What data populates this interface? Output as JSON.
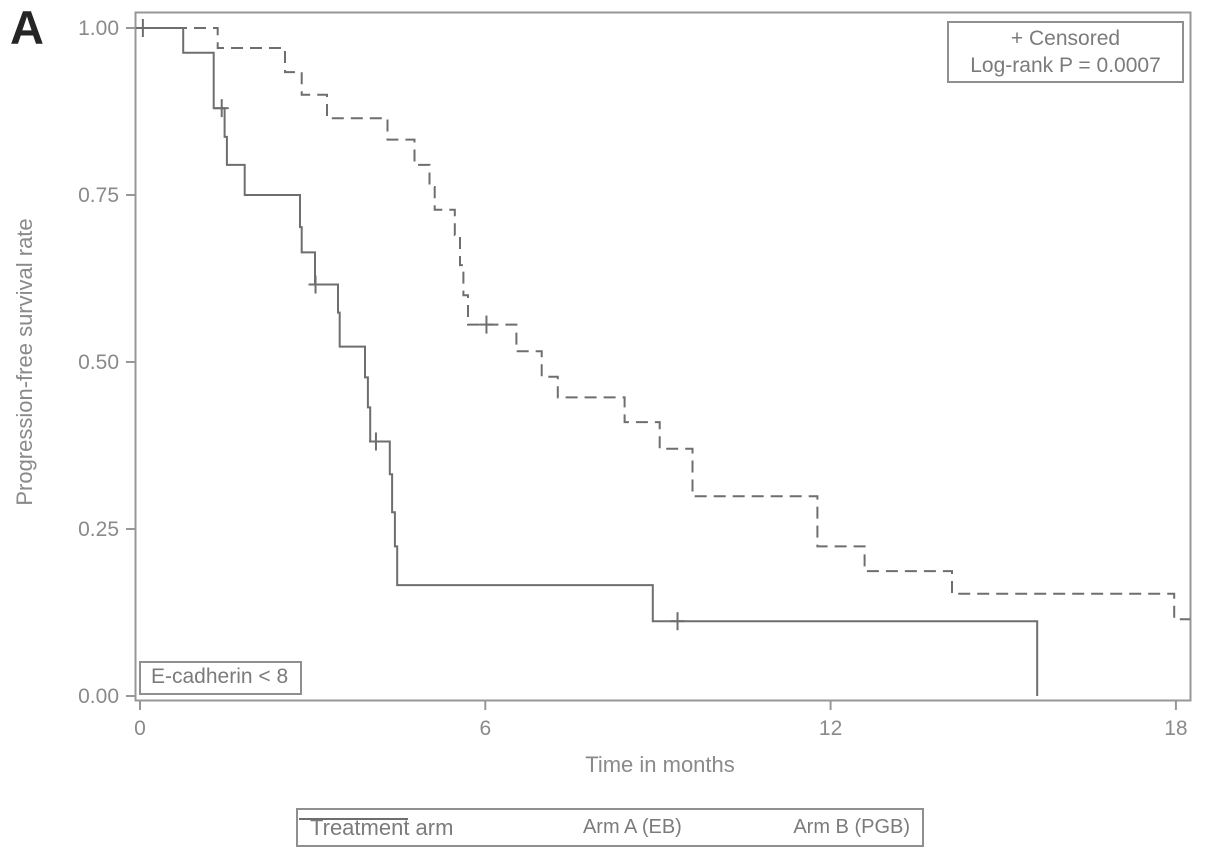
{
  "chart_data": {
    "type": "line",
    "subtype": "kaplan-meier-step-curves",
    "panel_label": "A",
    "xlabel": "Time in months",
    "ylabel": "Progression-free survival rate",
    "xlim": [
      0,
      18.25
    ],
    "ylim": [
      0,
      1
    ],
    "xticks": [
      "0",
      "6",
      "12",
      "18"
    ],
    "yticks": [
      "0.00",
      "0.25",
      "0.50",
      "0.75",
      "1.00"
    ],
    "grid": "off",
    "annotations": {
      "stats_box": [
        "+ Censored",
        "Log-rank P = 0.0007"
      ],
      "subgroup_box": "E-cadherin < 8"
    },
    "legend": {
      "position": "bottom",
      "title": "Treatment arm",
      "entries": [
        {
          "label": "Arm A (EB)",
          "line_style": "solid"
        },
        {
          "label": "Arm B (PGB)",
          "line_style": "dashed"
        }
      ]
    },
    "colors": {
      "line": "#6e6e6e",
      "frame": "#979797",
      "tick_text": "#8a8a8a",
      "box_text": "#7b7b7b",
      "panel_label": "#252525",
      "background": "#ffffff"
    },
    "series": [
      {
        "name": "Arm A (EB)",
        "style": "solid",
        "steps": [
          [
            0,
            1.0
          ],
          [
            0.75,
            0.963
          ],
          [
            1.28,
            0.88
          ],
          [
            1.47,
            0.837
          ],
          [
            1.51,
            0.795
          ],
          [
            1.82,
            0.75
          ],
          [
            2.78,
            0.702
          ],
          [
            2.81,
            0.664
          ],
          [
            3.04,
            0.616
          ],
          [
            3.44,
            0.574
          ],
          [
            3.47,
            0.523
          ],
          [
            3.91,
            0.477
          ],
          [
            3.96,
            0.432
          ],
          [
            4.0,
            0.381
          ],
          [
            4.34,
            0.332
          ],
          [
            4.38,
            0.275
          ],
          [
            4.43,
            0.224
          ],
          [
            4.47,
            0.166
          ],
          [
            8.91,
            0.112
          ],
          [
            15.59,
            0.0
          ]
        ],
        "censored": [
          [
            0.05,
            1.0
          ],
          [
            1.42,
            0.88
          ],
          [
            3.05,
            0.616
          ],
          [
            4.1,
            0.381
          ],
          [
            9.34,
            0.112
          ]
        ],
        "end_time": 15.59
      },
      {
        "name": "Arm B (PGB)",
        "style": "dashed",
        "steps": [
          [
            0,
            1.0
          ],
          [
            1.35,
            0.97
          ],
          [
            2.52,
            0.934
          ],
          [
            2.81,
            0.9
          ],
          [
            3.25,
            0.865
          ],
          [
            4.3,
            0.833
          ],
          [
            4.77,
            0.795
          ],
          [
            5.03,
            0.762
          ],
          [
            5.12,
            0.728
          ],
          [
            5.47,
            0.69
          ],
          [
            5.56,
            0.645
          ],
          [
            5.62,
            0.6
          ],
          [
            5.7,
            0.556
          ],
          [
            6.54,
            0.516
          ],
          [
            6.98,
            0.478
          ],
          [
            7.26,
            0.447
          ],
          [
            8.42,
            0.41
          ],
          [
            9.03,
            0.37
          ],
          [
            9.6,
            0.299
          ],
          [
            11.77,
            0.224
          ],
          [
            12.59,
            0.187
          ],
          [
            14.11,
            0.153
          ],
          [
            17.97,
            0.115
          ]
        ],
        "censored": [
          [
            6.02,
            0.556
          ]
        ],
        "end_time": 18.25
      }
    ]
  }
}
